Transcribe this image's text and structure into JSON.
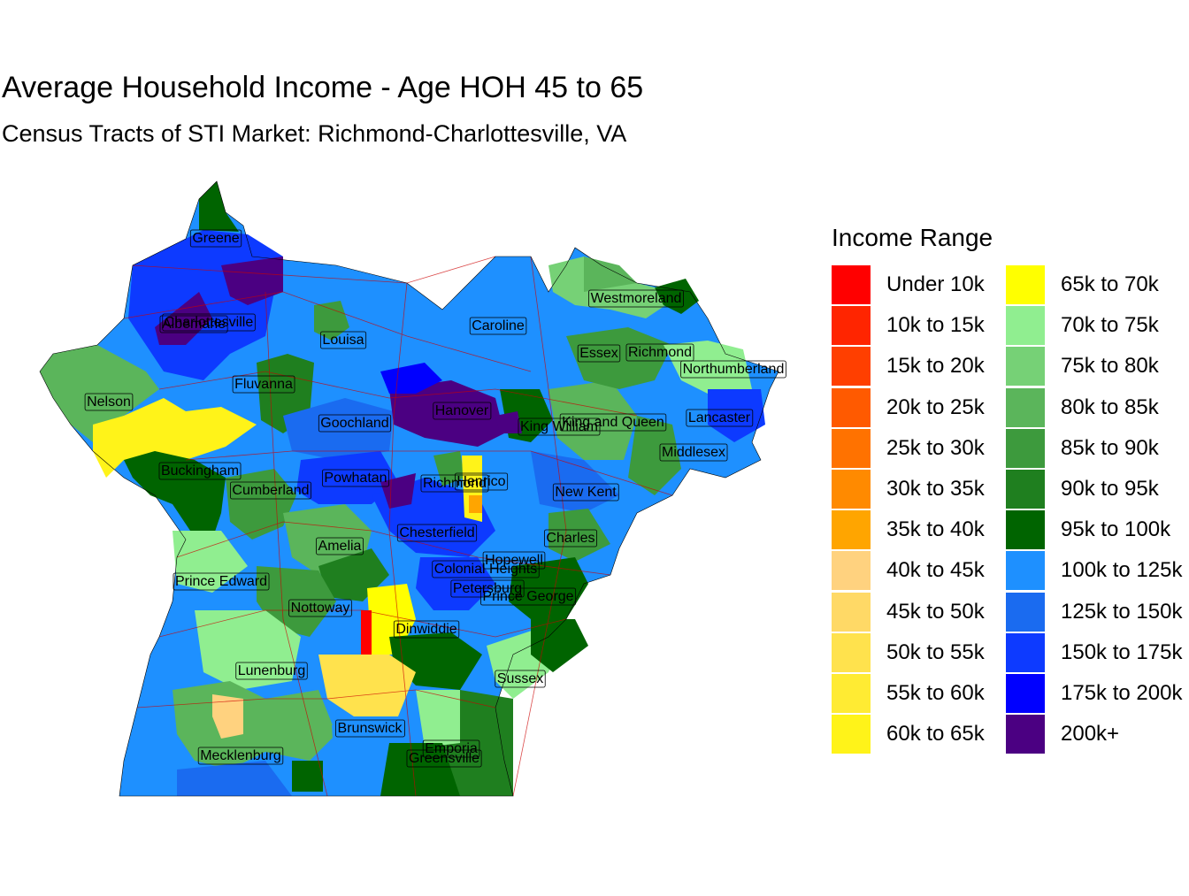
{
  "title": "Average Household Income - Age HOH 45 to 65",
  "subtitle": "Census Tracts of STI Market: Richmond-Charlottesville, VA",
  "legend": {
    "title": "Income Range",
    "items": [
      {
        "label": "Under 10k",
        "color": "#FF0000"
      },
      {
        "label": "10k to 15k",
        "color": "#FF2500"
      },
      {
        "label": "15k to 20k",
        "color": "#FF3F00"
      },
      {
        "label": "20k to 25k",
        "color": "#FF5A00"
      },
      {
        "label": "25k to 30k",
        "color": "#FF7200"
      },
      {
        "label": "30k to 35k",
        "color": "#FF8A00"
      },
      {
        "label": "35k to 40k",
        "color": "#FFA500"
      },
      {
        "label": "40k to 45k",
        "color": "#FFD27F"
      },
      {
        "label": "45k to 50k",
        "color": "#FFD966"
      },
      {
        "label": "50k to 55k",
        "color": "#FFE24D"
      },
      {
        "label": "55k to 60k",
        "color": "#FFEB33"
      },
      {
        "label": "60k to 65k",
        "color": "#FFF319"
      },
      {
        "label": "65k to 70k",
        "color": "#FFFF00"
      },
      {
        "label": "70k to 75k",
        "color": "#90EE90"
      },
      {
        "label": "75k to 80k",
        "color": "#76D176"
      },
      {
        "label": "80k to 85k",
        "color": "#5BB55B"
      },
      {
        "label": "85k to 90k",
        "color": "#3D9A3D"
      },
      {
        "label": "90k to 95k",
        "color": "#1F7F1F"
      },
      {
        "label": "95k to 100k",
        "color": "#006400"
      },
      {
        "label": "100k to 125k",
        "color": "#1E90FF"
      },
      {
        "label": "125k to 150k",
        "color": "#1A6BF0"
      },
      {
        "label": "150k to 175k",
        "color": "#0D3AFF"
      },
      {
        "label": "175k to 200k",
        "color": "#0000FF"
      },
      {
        "label": "200k+",
        "color": "#4B0082"
      }
    ]
  },
  "counties": [
    {
      "name": "Greene"
    },
    {
      "name": "Albemarle"
    },
    {
      "name": "Charlottesville"
    },
    {
      "name": "Louisa"
    },
    {
      "name": "Caroline"
    },
    {
      "name": "Westmoreland"
    },
    {
      "name": "Essex"
    },
    {
      "name": "Richmond"
    },
    {
      "name": "Northumberland"
    },
    {
      "name": "Nelson"
    },
    {
      "name": "Fluvanna"
    },
    {
      "name": "Hanover"
    },
    {
      "name": "Goochland"
    },
    {
      "name": "King William"
    },
    {
      "name": "King and Queen"
    },
    {
      "name": "Lancaster"
    },
    {
      "name": "Middlesex"
    },
    {
      "name": "Buckingham"
    },
    {
      "name": "Powhatan"
    },
    {
      "name": "Cumberland"
    },
    {
      "name": "Richmond"
    },
    {
      "name": "Henrico"
    },
    {
      "name": "New Kent"
    },
    {
      "name": "Chesterfield"
    },
    {
      "name": "Charles"
    },
    {
      "name": "Amelia"
    },
    {
      "name": "Hopewell"
    },
    {
      "name": "Colonial Heights"
    },
    {
      "name": "Prince Edward"
    },
    {
      "name": "Petersburg"
    },
    {
      "name": "Prince George"
    },
    {
      "name": "Nottoway"
    },
    {
      "name": "Dinwiddie"
    },
    {
      "name": "Lunenburg"
    },
    {
      "name": "Sussex"
    },
    {
      "name": "Brunswick"
    },
    {
      "name": "Emporia"
    },
    {
      "name": "Mecklenburg"
    },
    {
      "name": "Greensville"
    }
  ]
}
